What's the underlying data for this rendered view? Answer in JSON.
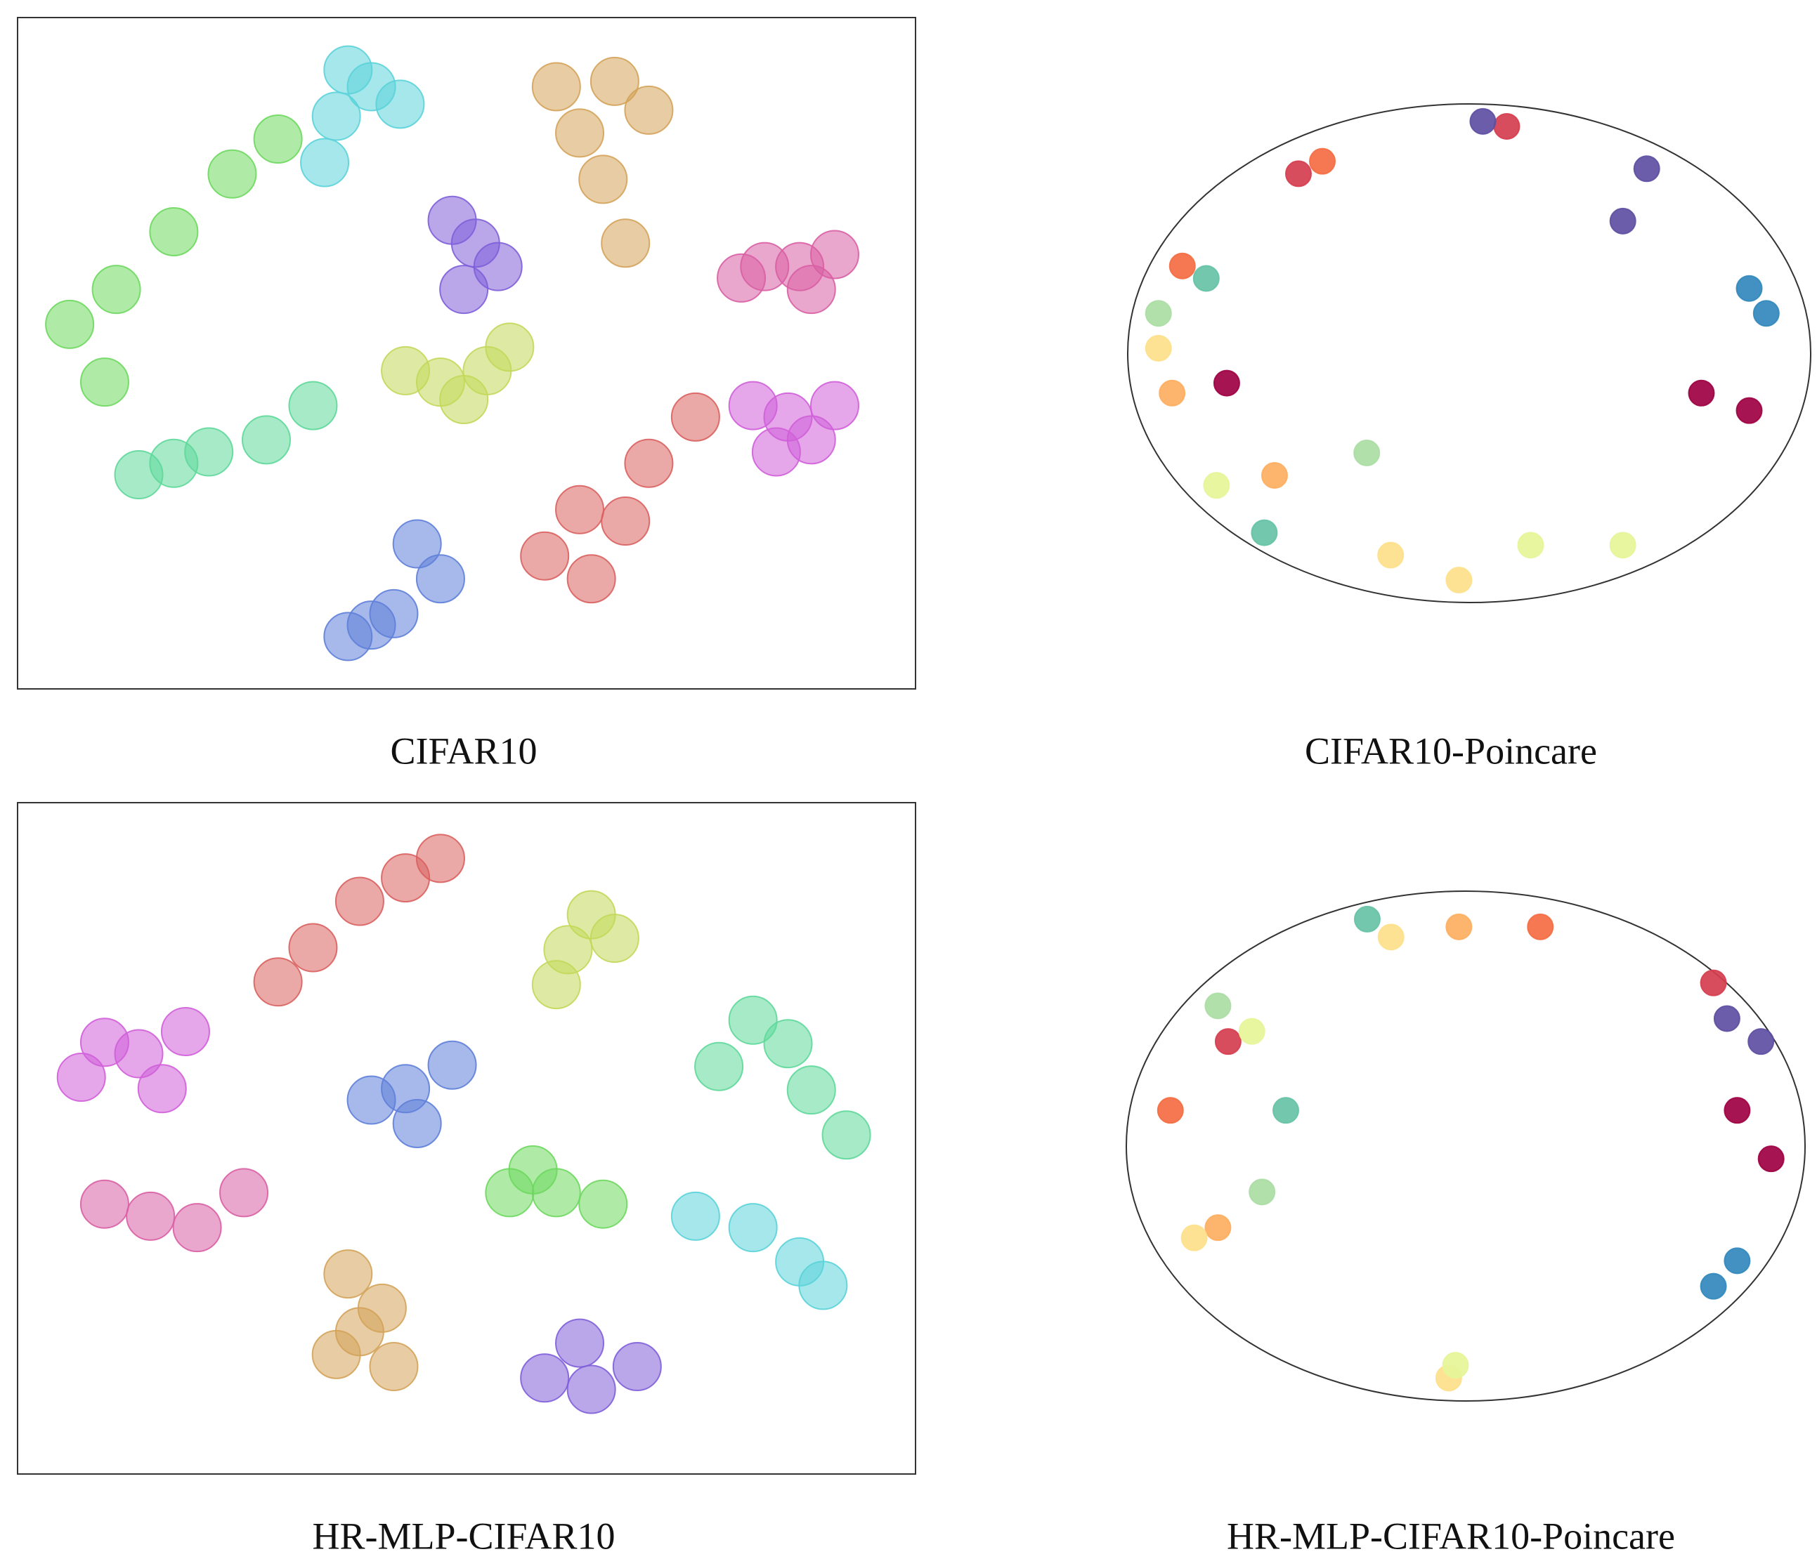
{
  "chart_data": [
    {
      "type": "scatter",
      "title": "CIFAR10",
      "frame": "box",
      "xlim": [
        0,
        100
      ],
      "ylim": [
        0,
        100
      ],
      "series": [
        {
          "color": "#d9605f",
          "x": [
            58.7,
            63.9,
            67.7,
            62.6,
            70.3,
            75.5
          ],
          "y": [
            19.8,
            16.4,
            25,
            26.7,
            33.6,
            40.5
          ]
        },
        {
          "color": "#d4a35a",
          "x": [
            60,
            66.5,
            70.3,
            62.6,
            65.2,
            67.7
          ],
          "y": [
            89.7,
            90.5,
            86.2,
            82.8,
            75.9,
            66.4
          ]
        },
        {
          "color": "#c2d85a",
          "x": [
            47.1,
            52.3,
            49.7,
            43.2,
            54.8
          ],
          "y": [
            45.7,
            47.4,
            43.1,
            47.4,
            50.9
          ]
        },
        {
          "color": "#6ed85f",
          "x": [
            5.8,
            11,
            17.4,
            23.9,
            29,
            9.7
          ],
          "y": [
            54.3,
            59.5,
            68.1,
            76.7,
            81.9,
            45.7
          ]
        },
        {
          "color": "#5fd89a",
          "x": [
            17.4,
            13.5,
            21.3,
            27.7,
            32.9
          ],
          "y": [
            33.6,
            31.9,
            35.3,
            37.1,
            42.2
          ]
        },
        {
          "color": "#5bd3d9",
          "x": [
            39.4,
            36.8,
            42.6,
            35.5,
            34.2
          ],
          "y": [
            89.7,
            92.2,
            87.1,
            85.3,
            78.4
          ]
        },
        {
          "color": "#5f7fd9",
          "x": [
            41.9,
            36.8,
            47.1,
            39.4,
            44.5
          ],
          "y": [
            11.2,
            7.8,
            16.4,
            9.5,
            21.6
          ]
        },
        {
          "color": "#7f5fd9",
          "x": [
            51,
            48.4,
            53.5,
            49.7
          ],
          "y": [
            66.4,
            69.8,
            62.9,
            59.5
          ]
        },
        {
          "color": "#d05fd9",
          "x": [
            85.8,
            81.9,
            88.4,
            84.5,
            91
          ],
          "y": [
            40.5,
            42.2,
            37.1,
            35.3,
            42.2
          ]
        },
        {
          "color": "#d95fa4",
          "x": [
            87.1,
            83.2,
            91,
            88.4,
            80.6
          ],
          "y": [
            62.9,
            62.9,
            64.7,
            59.5,
            61.2
          ]
        }
      ]
    },
    {
      "type": "scatter",
      "title": "CIFAR10-Poincare",
      "frame": "circle",
      "xlim": [
        -1,
        1
      ],
      "ylim": [
        -1,
        1
      ],
      "series": [
        {
          "color": "#9e0142",
          "x": [
            0.82,
            0.68,
            -0.71
          ],
          "y": [
            -0.23,
            -0.16,
            -0.12
          ]
        },
        {
          "color": "#d53e4f",
          "x": [
            0.11,
            -0.5
          ],
          "y": [
            0.91,
            0.72
          ]
        },
        {
          "color": "#f46d43",
          "x": [
            -0.43,
            -0.84
          ],
          "y": [
            0.77,
            0.35
          ]
        },
        {
          "color": "#fdae61",
          "x": [
            -0.87,
            -0.57
          ],
          "y": [
            -0.16,
            -0.49
          ]
        },
        {
          "color": "#fee08b",
          "x": [
            -0.23,
            -0.03,
            -0.91
          ],
          "y": [
            -0.81,
            -0.91,
            0.02
          ]
        },
        {
          "color": "#e6f598",
          "x": [
            0.18,
            0.45,
            -0.74
          ],
          "y": [
            -0.77,
            -0.77,
            -0.53
          ]
        },
        {
          "color": "#abdda4",
          "x": [
            -0.91,
            -0.3
          ],
          "y": [
            0.16,
            -0.4
          ]
        },
        {
          "color": "#66c2a5",
          "x": [
            -0.6,
            -0.77
          ],
          "y": [
            -0.72,
            0.3
          ]
        },
        {
          "color": "#3288bd",
          "x": [
            0.87,
            0.82
          ],
          "y": [
            0.16,
            0.26
          ]
        },
        {
          "color": "#5e4fa2",
          "x": [
            0.52,
            0.04,
            0.45
          ],
          "y": [
            0.74,
            0.93,
            0.53
          ]
        }
      ]
    },
    {
      "type": "scatter",
      "title": "HR-MLP-CIFAR10",
      "frame": "box",
      "xlim": [
        0,
        100
      ],
      "ylim": [
        0,
        100
      ],
      "series": [
        {
          "color": "#d9605f",
          "x": [
            43.2,
            38.1,
            32.9,
            47.1,
            29
          ],
          "y": [
            88.8,
            85.3,
            78.4,
            91.7,
            73.3
          ]
        },
        {
          "color": "#d4a35a",
          "x": [
            38.1,
            35.5,
            40.6,
            36.8,
            41.9
          ],
          "y": [
            21.2,
            17.8,
            24.7,
            29.8,
            16
          ]
        },
        {
          "color": "#c2d85a",
          "x": [
            63.9,
            61.3,
            66.5,
            60
          ],
          "y": [
            83.3,
            78.1,
            79.8,
            72.9
          ]
        },
        {
          "color": "#6ed85f",
          "x": [
            60,
            54.8,
            65.2,
            57.4
          ],
          "y": [
            41.9,
            41.9,
            40.2,
            45.3
          ]
        },
        {
          "color": "#5fd89a",
          "x": [
            85.8,
            81.9,
            88.4,
            78.1,
            92.3
          ],
          "y": [
            64.1,
            67.6,
            57.2,
            60.7,
            50.5
          ]
        },
        {
          "color": "#5bd3d9",
          "x": [
            87.1,
            81.9,
            89.7,
            75.5
          ],
          "y": [
            31.6,
            36.7,
            28.1,
            38.4
          ]
        },
        {
          "color": "#5f7fd9",
          "x": [
            43.2,
            39.4,
            48.4,
            44.5
          ],
          "y": [
            57.4,
            55.7,
            60.9,
            52.2
          ]
        },
        {
          "color": "#7f5fd9",
          "x": [
            63.9,
            58.7,
            69,
            62.6
          ],
          "y": [
            12.6,
            14.3,
            16,
            19.5
          ]
        },
        {
          "color": "#d05fd9",
          "x": [
            13.5,
            9.7,
            18.7,
            16.1,
            7.1
          ],
          "y": [
            62.6,
            64.3,
            65.9,
            57.4,
            59.1
          ]
        },
        {
          "color": "#d95fa4",
          "x": [
            14.8,
            9.7,
            20,
            25.2
          ],
          "y": [
            38.4,
            40.2,
            36.7,
            41.9
          ]
        }
      ]
    },
    {
      "type": "scatter",
      "title": "HR-MLP-CIFAR10-Poincare",
      "frame": "circle",
      "xlim": [
        -1,
        1
      ],
      "ylim": [
        -1,
        1
      ],
      "series": [
        {
          "color": "#9e0142",
          "x": [
            0.9,
            0.8
          ],
          "y": [
            -0.05,
            0.14
          ]
        },
        {
          "color": "#d53e4f",
          "x": [
            0.73,
            -0.7
          ],
          "y": [
            0.64,
            0.41
          ]
        },
        {
          "color": "#f46d43",
          "x": [
            0.22,
            -0.87
          ],
          "y": [
            0.86,
            0.14
          ]
        },
        {
          "color": "#fdae61",
          "x": [
            -0.02,
            -0.73
          ],
          "y": [
            0.86,
            -0.32
          ]
        },
        {
          "color": "#fee08b",
          "x": [
            -0.8,
            -0.05,
            -0.22
          ],
          "y": [
            -0.36,
            -0.91,
            0.82
          ]
        },
        {
          "color": "#e6f598",
          "x": [
            -0.03,
            -0.63
          ],
          "y": [
            -0.86,
            0.45
          ]
        },
        {
          "color": "#abdda4",
          "x": [
            -0.73,
            -0.6
          ],
          "y": [
            0.55,
            -0.18
          ]
        },
        {
          "color": "#66c2a5",
          "x": [
            -0.29,
            -0.53
          ],
          "y": [
            0.89,
            0.14
          ]
        },
        {
          "color": "#3288bd",
          "x": [
            0.73,
            0.8
          ],
          "y": [
            -0.55,
            -0.45
          ]
        },
        {
          "color": "#5e4fa2",
          "x": [
            0.87,
            0.77
          ],
          "y": [
            0.41,
            0.5
          ]
        }
      ]
    }
  ]
}
